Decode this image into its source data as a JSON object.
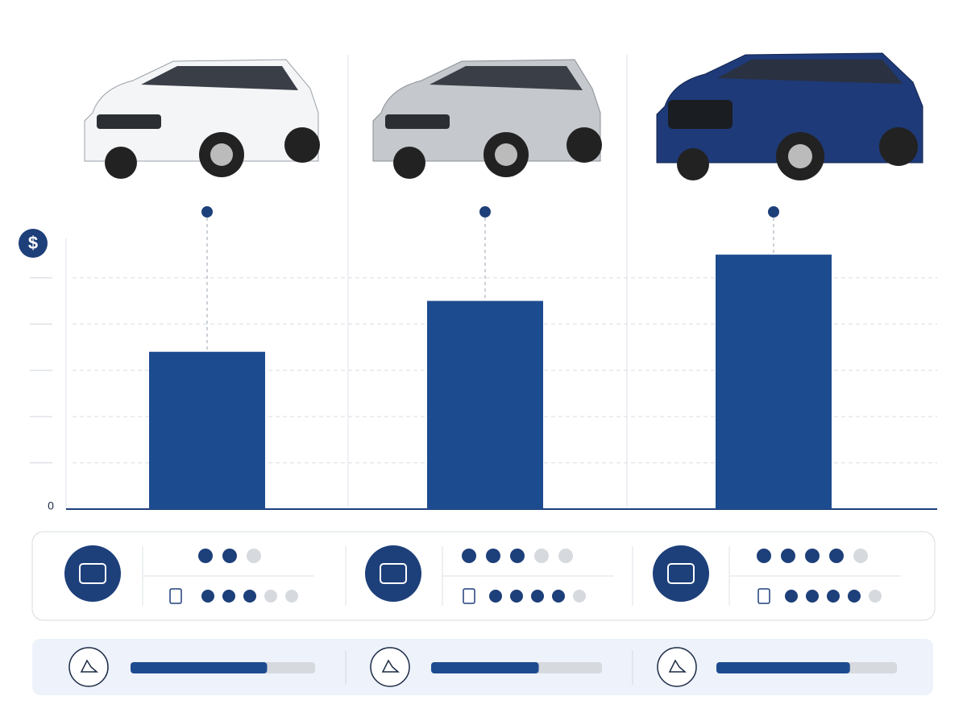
{
  "chart_data": {
    "type": "bar",
    "y_label": "$",
    "categories": [
      null,
      null,
      null
    ],
    "values": [
      3.4,
      4.5,
      5.5
    ],
    "color": "#1d4b8f",
    "ylim": [
      0,
      5.85
    ],
    "yticks": [
      0
    ],
    "minor_gridlines": [
      1,
      2,
      3,
      4,
      5
    ],
    "grid": true
  },
  "ratings": [
    {
      "top": {
        "filled": 2,
        "total": 3
      },
      "bottom": {
        "filled": 3,
        "total": 5
      }
    },
    {
      "top": {
        "filled": 3,
        "total": 5
      },
      "bottom": {
        "filled": 4,
        "total": 5
      }
    },
    {
      "top": {
        "filled": 4,
        "total": 5
      },
      "bottom": {
        "filled": 4,
        "total": 5
      }
    }
  ],
  "progress": {
    "max": 100,
    "values": [
      74,
      63,
      74
    ]
  }
}
